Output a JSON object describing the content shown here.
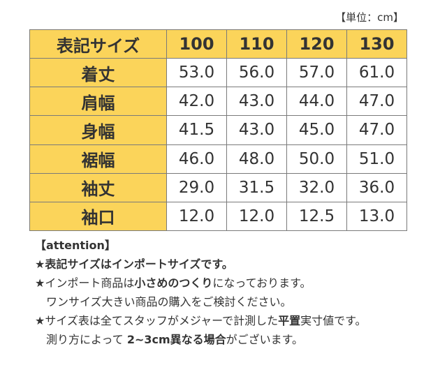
{
  "unit_note": "【単位：cm】",
  "table": {
    "header_label": "表記サイズ",
    "sizes": [
      "100",
      "110",
      "120",
      "130"
    ],
    "rows": [
      {
        "label": "着丈",
        "values": [
          "53.0",
          "56.0",
          "57.0",
          "61.0"
        ]
      },
      {
        "label": "肩幅",
        "values": [
          "42.0",
          "43.0",
          "44.0",
          "47.0"
        ]
      },
      {
        "label": "身幅",
        "values": [
          "41.5",
          "43.0",
          "45.0",
          "47.0"
        ]
      },
      {
        "label": "裾幅",
        "values": [
          "46.0",
          "48.0",
          "50.0",
          "51.0"
        ]
      },
      {
        "label": "袖丈",
        "values": [
          "29.0",
          "31.5",
          "32.0",
          "36.0"
        ]
      },
      {
        "label": "袖口",
        "values": [
          "12.0",
          "12.0",
          "12.5",
          "13.0"
        ]
      }
    ]
  },
  "notes": {
    "attention_heading": "【attention】",
    "line1": "★表記サイズはインポートサイズです。",
    "line2_pre": "★インポート商品は",
    "line2_bold": "小さめのつくり",
    "line2_post": "になっております。",
    "line3": "ワンサイズ大きい商品の購入をご検討ください。",
    "line4_pre": "★サイズ表は全てスタッフがメジャーで計測した",
    "line4_bold": "平置",
    "line4_post": "実寸値です。",
    "line5_pre": "測り方によって ",
    "line5_bold": "2~3cm異なる場合",
    "line5_post": "がございます。"
  },
  "colors": {
    "header_bg": "#fbd45a",
    "border": "#7a7a7a",
    "text": "#333333"
  }
}
